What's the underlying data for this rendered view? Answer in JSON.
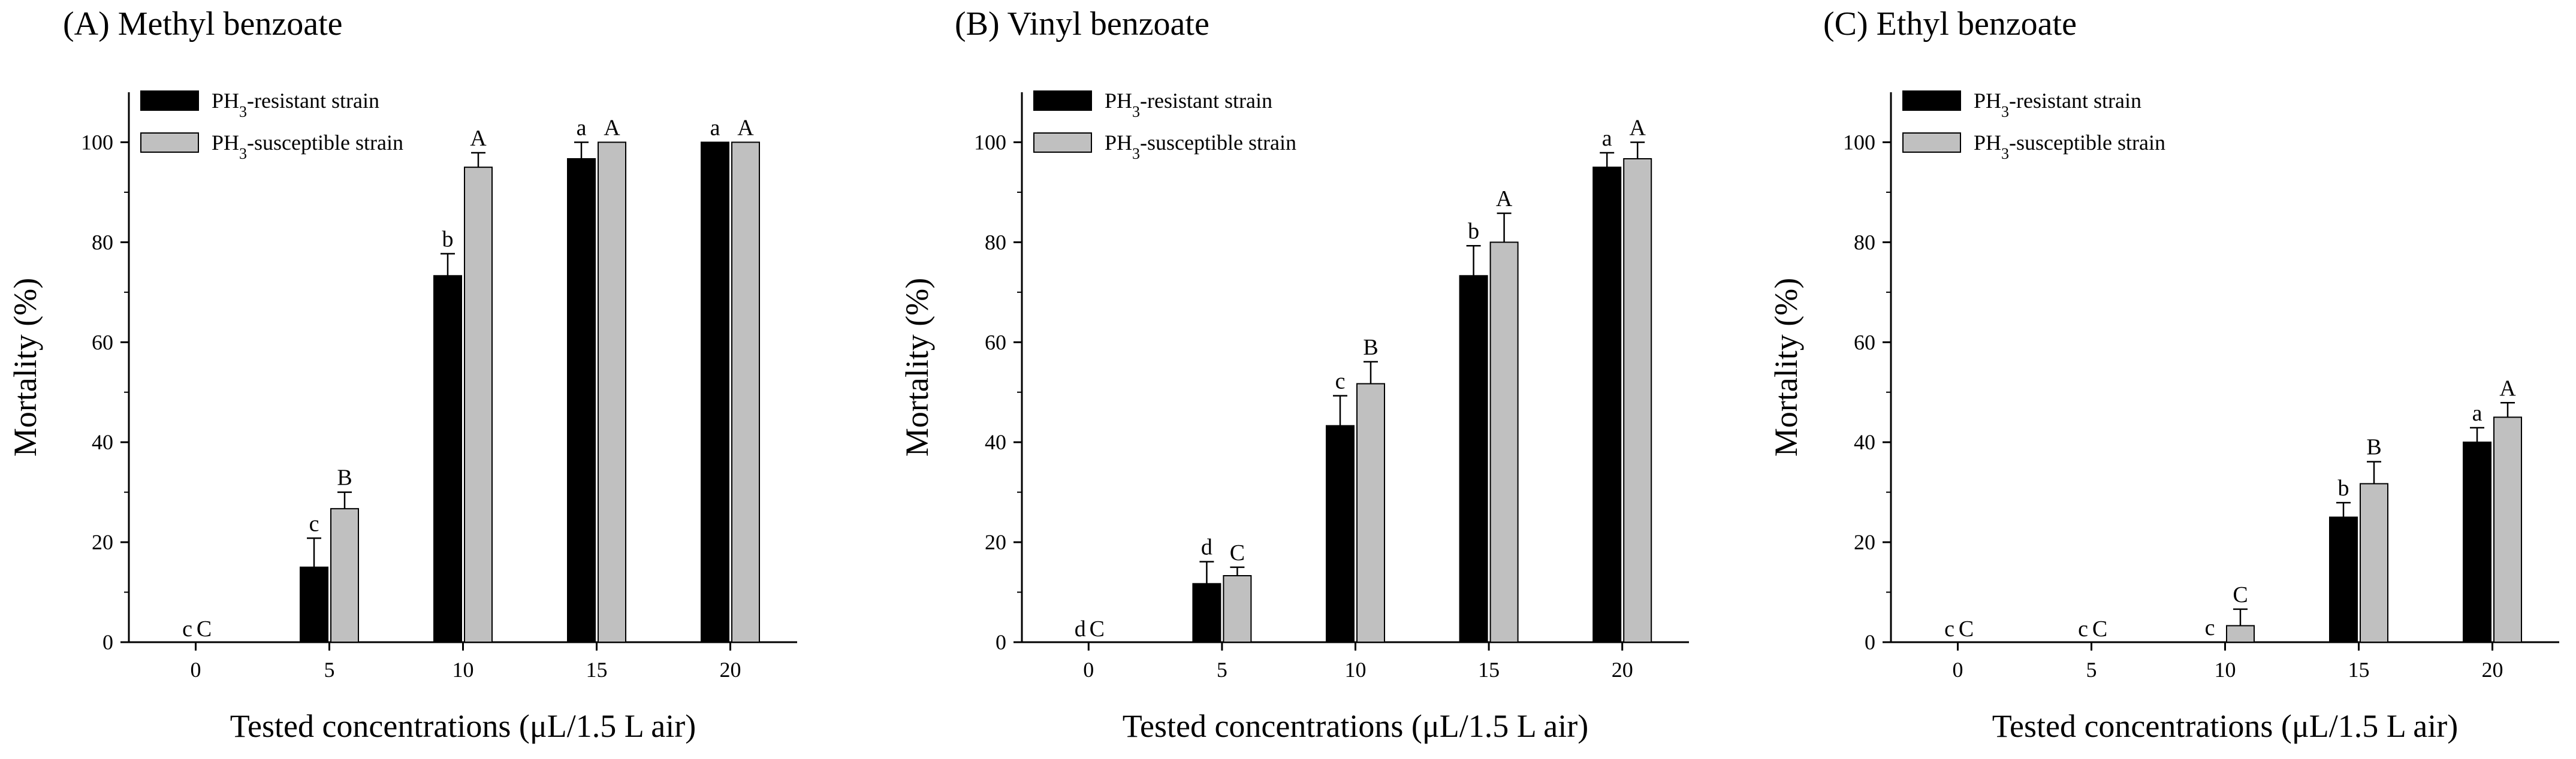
{
  "colors": {
    "resistant": "#000000",
    "susceptible": "#c0c0c0",
    "axis": "#000000"
  },
  "chart_data": [
    {
      "type": "bar",
      "title": "(A) Methyl benzoate",
      "xlabel": "Tested concentrations (μL/1.5 L air)",
      "ylabel": "Mortality (%)",
      "ylim": [
        0,
        110
      ],
      "yticks": [
        0,
        20,
        40,
        60,
        80,
        100
      ],
      "categories": [
        "0",
        "5",
        "10",
        "15",
        "20"
      ],
      "series": [
        {
          "name": "PH3-resistant strain",
          "label_main": "PH",
          "label_sub": "3",
          "label_rest": "-resistant strain",
          "values": [
            0,
            15,
            73.3,
            96.7,
            100
          ],
          "errors": [
            0,
            5.8,
            4.4,
            3.3,
            0
          ],
          "letters": [
            "c",
            "c",
            "b",
            "a",
            "a"
          ]
        },
        {
          "name": "PH3-susceptible strain",
          "label_main": "PH",
          "label_sub": "3",
          "label_rest": "-susceptible strain",
          "values": [
            0,
            26.7,
            95,
            100,
            100
          ],
          "errors": [
            0,
            3.3,
            2.9,
            0,
            0
          ],
          "letters": [
            "C",
            "B",
            "A",
            "A",
            "A"
          ]
        }
      ]
    },
    {
      "type": "bar",
      "title": "(B) Vinyl benzoate",
      "xlabel": "Tested concentrations (μL/1.5 L air)",
      "ylabel": "Mortality (%)",
      "ylim": [
        0,
        110
      ],
      "yticks": [
        0,
        20,
        40,
        60,
        80,
        100
      ],
      "categories": [
        "0",
        "5",
        "10",
        "15",
        "20"
      ],
      "series": [
        {
          "name": "PH3-resistant strain",
          "label_main": "PH",
          "label_sub": "3",
          "label_rest": "-resistant strain",
          "values": [
            0,
            11.7,
            43.3,
            73.3,
            95
          ],
          "errors": [
            0,
            4.4,
            6,
            6,
            2.9
          ],
          "letters": [
            "d",
            "d",
            "c",
            "b",
            "a"
          ]
        },
        {
          "name": "PH3-susceptible strain",
          "label_main": "PH",
          "label_sub": "3",
          "label_rest": "-susceptible strain",
          "values": [
            0,
            13.3,
            51.7,
            80,
            96.7
          ],
          "errors": [
            0,
            1.7,
            4.4,
            5.8,
            3.3
          ],
          "letters": [
            "C",
            "C",
            "B",
            "A",
            "A"
          ]
        }
      ]
    },
    {
      "type": "bar",
      "title": "(C) Ethyl benzoate",
      "xlabel": "Tested concentrations (μL/1.5 L air)",
      "ylabel": "Mortality (%)",
      "ylim": [
        0,
        110
      ],
      "yticks": [
        0,
        20,
        40,
        60,
        80,
        100
      ],
      "categories": [
        "0",
        "5",
        "10",
        "15",
        "20"
      ],
      "series": [
        {
          "name": "PH3-resistant strain",
          "label_main": "PH",
          "label_sub": "3",
          "label_rest": "-resistant strain",
          "values": [
            0,
            0,
            0,
            25,
            40
          ],
          "errors": [
            0,
            0,
            0,
            2.9,
            2.9
          ],
          "letters": [
            "c",
            "c",
            "c",
            "b",
            "a"
          ]
        },
        {
          "name": "PH3-susceptible strain",
          "label_main": "PH",
          "label_sub": "3",
          "label_rest": "-susceptible strain",
          "values": [
            0,
            0,
            3.3,
            31.7,
            45
          ],
          "errors": [
            0,
            0,
            3.3,
            4.4,
            2.9
          ],
          "letters": [
            "C",
            "C",
            "C",
            "B",
            "A"
          ]
        }
      ]
    }
  ]
}
